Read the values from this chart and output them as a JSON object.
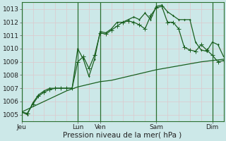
{
  "background_color": "#cce8e8",
  "plot_bg_color": "#cce8e8",
  "grid_h_color": "#ddc8cc",
  "grid_v_color": "#ddc8cc",
  "line_color": "#1a6020",
  "sep_color": "#2a7030",
  "title": "Pression niveau de la mer( hPa )",
  "ylim": [
    1004.5,
    1013.5
  ],
  "yticks": [
    1005,
    1006,
    1007,
    1008,
    1009,
    1010,
    1011,
    1012,
    1013
  ],
  "xlim": [
    0,
    216
  ],
  "day_positions": [
    0,
    60,
    84,
    144,
    204
  ],
  "day_labels": [
    "Jeu",
    "Lun",
    "Ven",
    "Sam",
    "Dim"
  ],
  "vline_positions": [
    0,
    60,
    84,
    144,
    204
  ],
  "line1_x": [
    0,
    6,
    12,
    18,
    24,
    30,
    36,
    42,
    48,
    54,
    60,
    66,
    72,
    78,
    84,
    90,
    96,
    102,
    108,
    114,
    120,
    126,
    132,
    138,
    144,
    150,
    156,
    162,
    168,
    174,
    180,
    186,
    192,
    198,
    204,
    210,
    216
  ],
  "line1_y": [
    1005.2,
    1005.1,
    1005.8,
    1006.4,
    1006.7,
    1006.9,
    1007.0,
    1007.0,
    1007.0,
    1007.0,
    1009.0,
    1009.4,
    1008.5,
    1009.5,
    1011.2,
    1011.1,
    1011.4,
    1011.7,
    1012.0,
    1012.1,
    1012.0,
    1011.8,
    1011.5,
    1012.5,
    1013.1,
    1013.2,
    1012.0,
    1012.0,
    1011.5,
    1010.1,
    1009.9,
    1009.8,
    1010.3,
    1009.9,
    1009.5,
    1009.0,
    1009.1
  ],
  "line2_x": [
    0,
    6,
    12,
    18,
    24,
    30,
    36,
    42,
    48,
    54,
    60,
    66,
    72,
    78,
    84,
    90,
    96,
    102,
    108,
    114,
    120,
    126,
    132,
    138,
    144,
    150,
    156,
    162,
    168,
    174,
    180,
    186,
    192,
    198,
    204,
    210,
    216
  ],
  "line2_y": [
    1005.2,
    1005.0,
    1005.9,
    1006.5,
    1006.8,
    1007.0,
    1007.0,
    1007.0,
    1007.0,
    1007.0,
    1010.0,
    1009.2,
    1007.9,
    1009.2,
    1011.3,
    1011.2,
    1011.5,
    1012.0,
    1012.0,
    1012.2,
    1012.4,
    1012.2,
    1012.7,
    1012.2,
    1013.2,
    1013.3,
    1012.8,
    1012.5,
    1012.2,
    1012.2,
    1012.2,
    1010.5,
    1009.9,
    1009.8,
    1010.5,
    1010.3,
    1009.4
  ],
  "line3_x": [
    0,
    12,
    24,
    36,
    48,
    60,
    72,
    84,
    96,
    108,
    120,
    132,
    144,
    156,
    168,
    180,
    192,
    204,
    216
  ],
  "line3_y": [
    1005.2,
    1005.6,
    1006.0,
    1006.4,
    1006.8,
    1007.1,
    1007.3,
    1007.5,
    1007.6,
    1007.8,
    1008.0,
    1008.2,
    1008.4,
    1008.55,
    1008.7,
    1008.85,
    1009.0,
    1009.1,
    1009.2
  ],
  "label_fontsize": 6.5,
  "title_fontsize": 7.5,
  "lw": 0.9,
  "ms": 2.0
}
